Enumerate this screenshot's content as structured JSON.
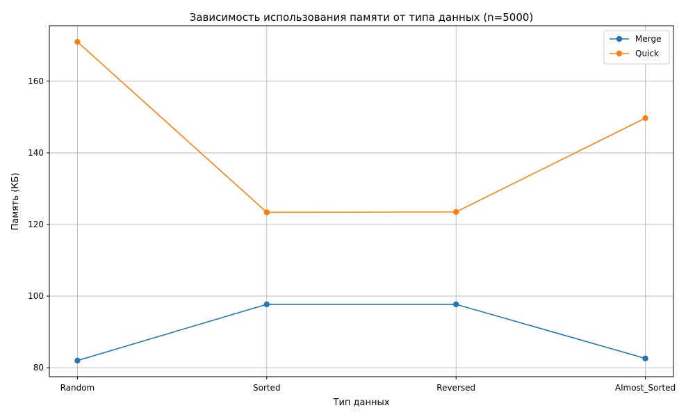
{
  "chart_data": {
    "type": "line",
    "title": "Зависимость использования памяти от типа данных (n=5000)",
    "xlabel": "Тип данных",
    "ylabel": "Память (КБ)",
    "categories": [
      "Random",
      "Sorted",
      "Reversed",
      "Almost_Sorted"
    ],
    "series": [
      {
        "name": "Merge",
        "color": "#1f77b4",
        "values": [
          82.0,
          97.7,
          97.7,
          82.6
        ]
      },
      {
        "name": "Quick",
        "color": "#ff7f0e",
        "values": [
          171.0,
          123.4,
          123.5,
          149.7
        ]
      }
    ],
    "ylim": [
      77.5,
      175.5
    ],
    "yticks": [
      80,
      100,
      120,
      140,
      160
    ],
    "grid": true,
    "legend": "top-right"
  }
}
